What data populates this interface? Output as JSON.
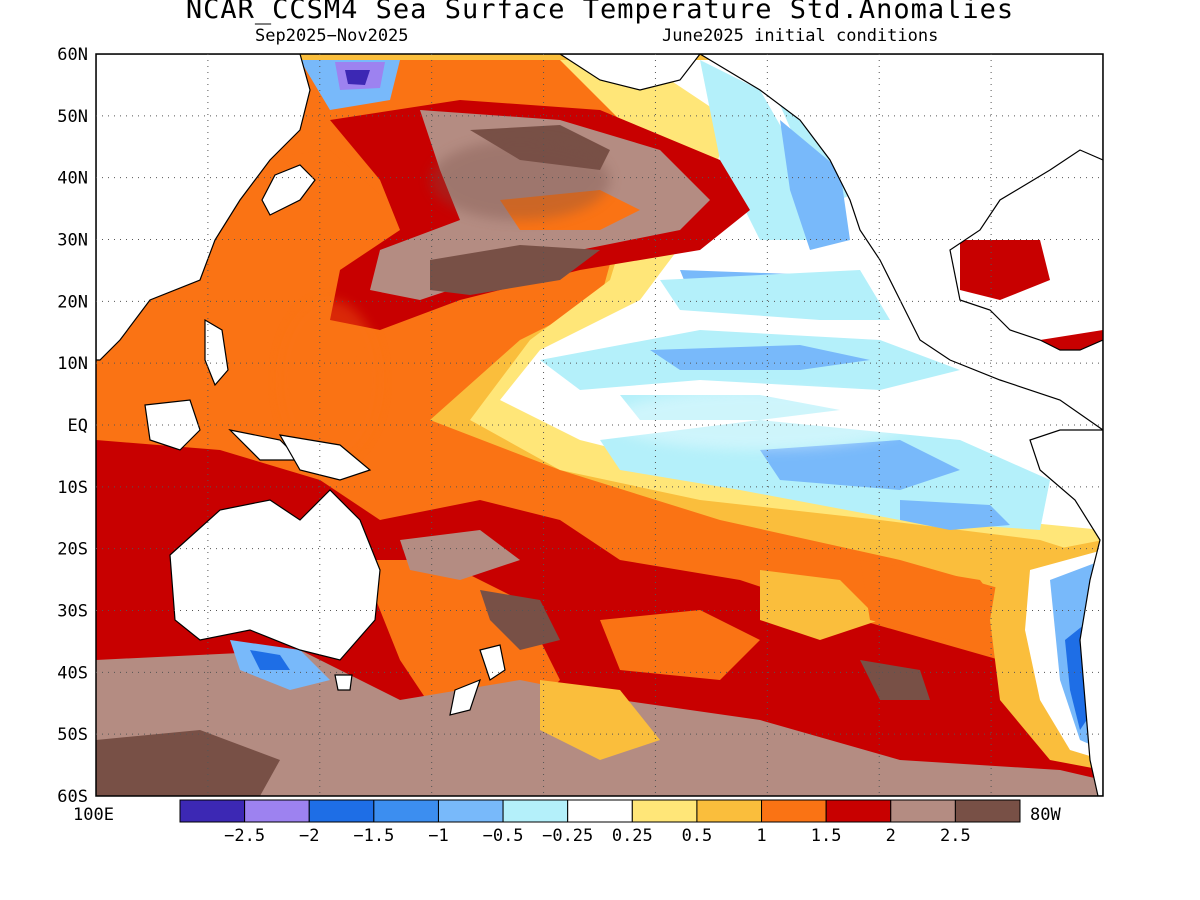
{
  "title": "NCAR_CCSM4 Sea Surface Temperature Std.Anomalies",
  "subtitle_left": "Sep2025−Nov2025",
  "subtitle_right": "June2025 initial conditions",
  "lat_labels": [
    "60N",
    "50N",
    "40N",
    "30N",
    "20N",
    "10N",
    "EQ",
    "10S",
    "20S",
    "30S",
    "40S",
    "50S",
    "60S"
  ],
  "lon_left_label": "100E",
  "lon_right_label": "80W",
  "colorbar": {
    "colors": [
      "#3c28b4",
      "#9d82f0",
      "#1e6ee6",
      "#3c8ef0",
      "#78b9fa",
      "#b4f0fa",
      "#ffffff",
      "#ffe678",
      "#fabe3c",
      "#fa7314",
      "#c80000",
      "#b48c82",
      "#785046"
    ],
    "labels": [
      "−2.5",
      "−2",
      "−1.5",
      "−1",
      "−0.5",
      "−0.25",
      "0.25",
      "0.5",
      "1",
      "1.5",
      "2",
      "2.5"
    ]
  },
  "palette": {
    "warm_025": "#ffe678",
    "warm_05": "#fabe3c",
    "warm_1": "#fa7314",
    "warm_15": "#c80000",
    "warm_2": "#b48c82",
    "warm_25": "#785046",
    "cool_025": "#b4f0fa",
    "cool_05": "#78b9fa",
    "cool_1": "#3c8ef0",
    "cool_15": "#1e6ee6",
    "cool_2": "#9d82f0",
    "cool_25": "#3c28b4"
  }
}
